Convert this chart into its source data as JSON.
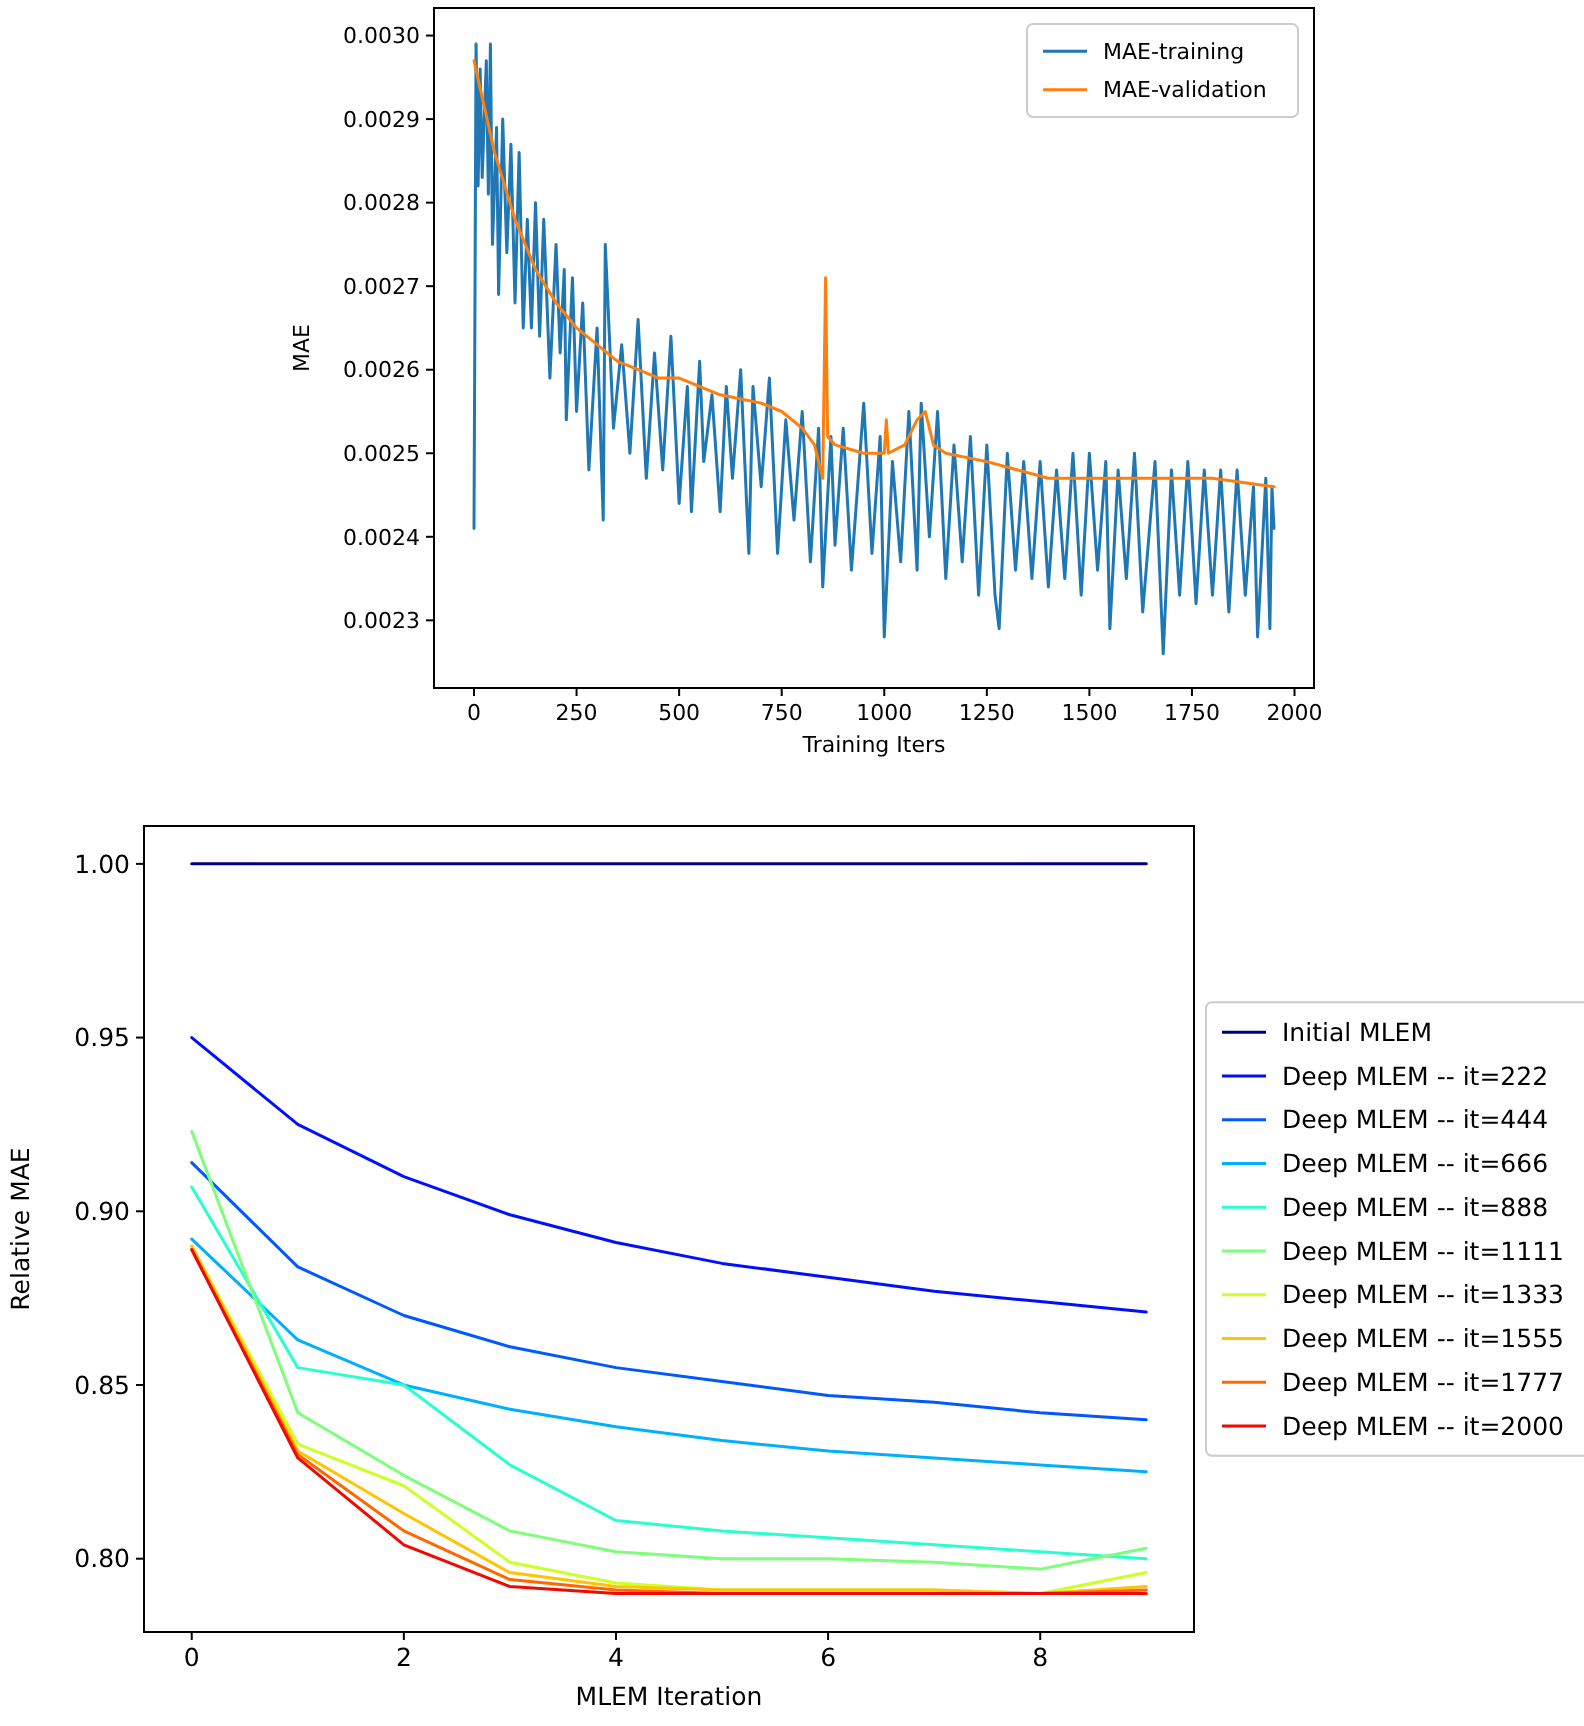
{
  "chart_data": [
    {
      "type": "line",
      "xlabel": "Training Iters",
      "ylabel": "MAE",
      "xlim": [
        -97.5,
        2047.5
      ],
      "xticks": [
        0,
        250,
        500,
        750,
        1000,
        1250,
        1500,
        1750,
        2000
      ],
      "ylim": [
        0.002219,
        0.003033
      ],
      "yticks": [
        0.0023,
        0.0024,
        0.0025,
        0.0026,
        0.0027,
        0.0028,
        0.0029,
        {
          "value": 0.003,
          "label": "0.0030"
        }
      ],
      "legend": "top right",
      "grid": false,
      "marker": "none",
      "line_style": "solid",
      "series": [
        {
          "name": "MAE-training",
          "color": "#1f77b4",
          "x": [
            0,
            5,
            10,
            15,
            20,
            30,
            35,
            40,
            45,
            55,
            60,
            70,
            80,
            90,
            100,
            110,
            120,
            130,
            140,
            150,
            160,
            170,
            185,
            200,
            210,
            220,
            225,
            240,
            250,
            265,
            280,
            300,
            315,
            320,
            340,
            360,
            380,
            400,
            420,
            440,
            460,
            480,
            500,
            520,
            530,
            550,
            560,
            580,
            600,
            615,
            630,
            650,
            670,
            680,
            700,
            720,
            740,
            760,
            780,
            800,
            820,
            840,
            850,
            870,
            880,
            900,
            920,
            950,
            970,
            990,
            1000,
            1020,
            1040,
            1060,
            1080,
            1090,
            1110,
            1130,
            1150,
            1170,
            1190,
            1210,
            1230,
            1250,
            1270,
            1280,
            1300,
            1320,
            1340,
            1360,
            1380,
            1400,
            1420,
            1440,
            1460,
            1480,
            1500,
            1520,
            1540,
            1550,
            1570,
            1590,
            1610,
            1630,
            1660,
            1680,
            1700,
            1720,
            1740,
            1760,
            1780,
            1800,
            1820,
            1840,
            1860,
            1880,
            1900,
            1910,
            1930,
            1940,
            1945,
            1950
          ],
          "values": [
            0.00241,
            0.00299,
            0.00282,
            0.00296,
            0.00283,
            0.00297,
            0.00281,
            0.00299,
            0.00275,
            0.00289,
            0.00269,
            0.0029,
            0.00274,
            0.00287,
            0.00268,
            0.00286,
            0.00265,
            0.00278,
            0.00265,
            0.0028,
            0.00264,
            0.00278,
            0.00259,
            0.00275,
            0.00262,
            0.00272,
            0.00254,
            0.00271,
            0.00255,
            0.00268,
            0.00248,
            0.00265,
            0.00242,
            0.00275,
            0.00253,
            0.00263,
            0.0025,
            0.00266,
            0.00247,
            0.00262,
            0.00248,
            0.00264,
            0.00244,
            0.00258,
            0.00243,
            0.00261,
            0.00249,
            0.00257,
            0.00243,
            0.00258,
            0.00247,
            0.0026,
            0.00238,
            0.00258,
            0.00246,
            0.00259,
            0.00238,
            0.00254,
            0.00242,
            0.00255,
            0.00237,
            0.00253,
            0.00234,
            0.00252,
            0.00239,
            0.00253,
            0.00236,
            0.00256,
            0.00238,
            0.00252,
            0.00228,
            0.00249,
            0.00237,
            0.00255,
            0.00236,
            0.00256,
            0.0024,
            0.00255,
            0.00235,
            0.00251,
            0.00237,
            0.00252,
            0.00233,
            0.00251,
            0.00233,
            0.00229,
            0.0025,
            0.00236,
            0.00249,
            0.00235,
            0.00249,
            0.00234,
            0.00248,
            0.00235,
            0.0025,
            0.00233,
            0.0025,
            0.00236,
            0.00249,
            0.00229,
            0.00248,
            0.00235,
            0.0025,
            0.00231,
            0.00249,
            0.00226,
            0.00248,
            0.00233,
            0.00249,
            0.00232,
            0.00248,
            0.00233,
            0.00248,
            0.00231,
            0.00248,
            0.00233,
            0.00246,
            0.00228,
            0.00247,
            0.00229,
            0.00246,
            0.00241
          ]
        },
        {
          "name": "MAE-validation",
          "color": "#ff7f0e",
          "x": [
            0,
            50,
            100,
            150,
            200,
            250,
            300,
            350,
            400,
            450,
            500,
            600,
            700,
            750,
            800,
            830,
            850,
            857,
            862,
            880,
            950,
            1000,
            1005,
            1010,
            1050,
            1080,
            1100,
            1120,
            1150,
            1250,
            1400,
            1600,
            1800,
            1950
          ],
          "values": [
            0.00297,
            0.00286,
            0.00278,
            0.00272,
            0.00268,
            0.00265,
            0.00263,
            0.00261,
            0.0026,
            0.00259,
            0.00259,
            0.00257,
            0.00256,
            0.00255,
            0.00253,
            0.00251,
            0.00247,
            0.00271,
            0.00252,
            0.00251,
            0.0025,
            0.0025,
            0.00254,
            0.0025,
            0.00251,
            0.00254,
            0.00255,
            0.00251,
            0.0025,
            0.00249,
            0.00247,
            0.00247,
            0.00247,
            0.00246
          ]
        }
      ]
    },
    {
      "type": "line",
      "xlabel": "MLEM Iteration",
      "ylabel": "Relative MAE",
      "x": [
        0,
        1,
        2,
        3,
        4,
        5,
        6,
        7,
        8,
        9
      ],
      "xlim": [
        -0.45,
        9.45
      ],
      "xticks": [
        0,
        2,
        4,
        6,
        8
      ],
      "ylim": [
        0.7789,
        1.0109
      ],
      "yticks": [
        {
          "value": 0.8,
          "label": "0.80"
        },
        0.85,
        {
          "value": 0.9,
          "label": "0.90"
        },
        0.95,
        {
          "value": 1,
          "label": "1.00"
        }
      ],
      "legend": "right",
      "grid": false,
      "marker": "none",
      "line_style": "solid",
      "series": [
        {
          "name": "Initial MLEM",
          "color": "#00007f",
          "values": [
            1,
            1,
            1,
            1,
            1,
            1,
            1,
            1,
            1,
            1
          ]
        },
        {
          "name": "Deep MLEM -- it=222",
          "color": "#0010ff",
          "values": [
            0.95,
            0.925,
            0.91,
            0.899,
            0.891,
            0.885,
            0.881,
            0.877,
            0.874,
            0.871
          ]
        },
        {
          "name": "Deep MLEM -- it=444",
          "color": "#0058ff",
          "values": [
            0.914,
            0.884,
            0.87,
            0.861,
            0.855,
            0.851,
            0.847,
            0.845,
            0.842,
            0.84
          ]
        },
        {
          "name": "Deep MLEM -- it=666",
          "color": "#00b0ff",
          "values": [
            0.892,
            0.863,
            0.85,
            0.843,
            0.838,
            0.834,
            0.831,
            0.829,
            0.827,
            0.825
          ]
        },
        {
          "name": "Deep MLEM -- it=888",
          "color": "#29ffce",
          "values": [
            0.907,
            0.855,
            0.85,
            0.827,
            0.811,
            0.808,
            0.806,
            0.804,
            0.802,
            0.8
          ]
        },
        {
          "name": "Deep MLEM -- it=1111",
          "color": "#7dff7a",
          "values": [
            0.923,
            0.842,
            0.824,
            0.808,
            0.802,
            0.8,
            0.8,
            0.799,
            0.797,
            0.803
          ]
        },
        {
          "name": "Deep MLEM -- it=1333",
          "color": "#ceff29",
          "values": [
            0.89,
            0.833,
            0.821,
            0.799,
            0.793,
            0.791,
            0.791,
            0.791,
            0.79,
            0.796
          ]
        },
        {
          "name": "Deep MLEM -- it=1555",
          "color": "#ffc400",
          "values": [
            0.89,
            0.831,
            0.813,
            0.796,
            0.792,
            0.791,
            0.791,
            0.791,
            0.79,
            0.792
          ]
        },
        {
          "name": "Deep MLEM -- it=1777",
          "color": "#ff6800",
          "values": [
            0.889,
            0.83,
            0.808,
            0.794,
            0.791,
            0.79,
            0.79,
            0.79,
            0.79,
            0.791
          ]
        },
        {
          "name": "Deep MLEM -- it=2000",
          "color": "#f10800",
          "values": [
            0.889,
            0.829,
            0.804,
            0.792,
            0.79,
            0.79,
            0.79,
            0.79,
            0.79,
            0.79
          ]
        }
      ]
    }
  ]
}
